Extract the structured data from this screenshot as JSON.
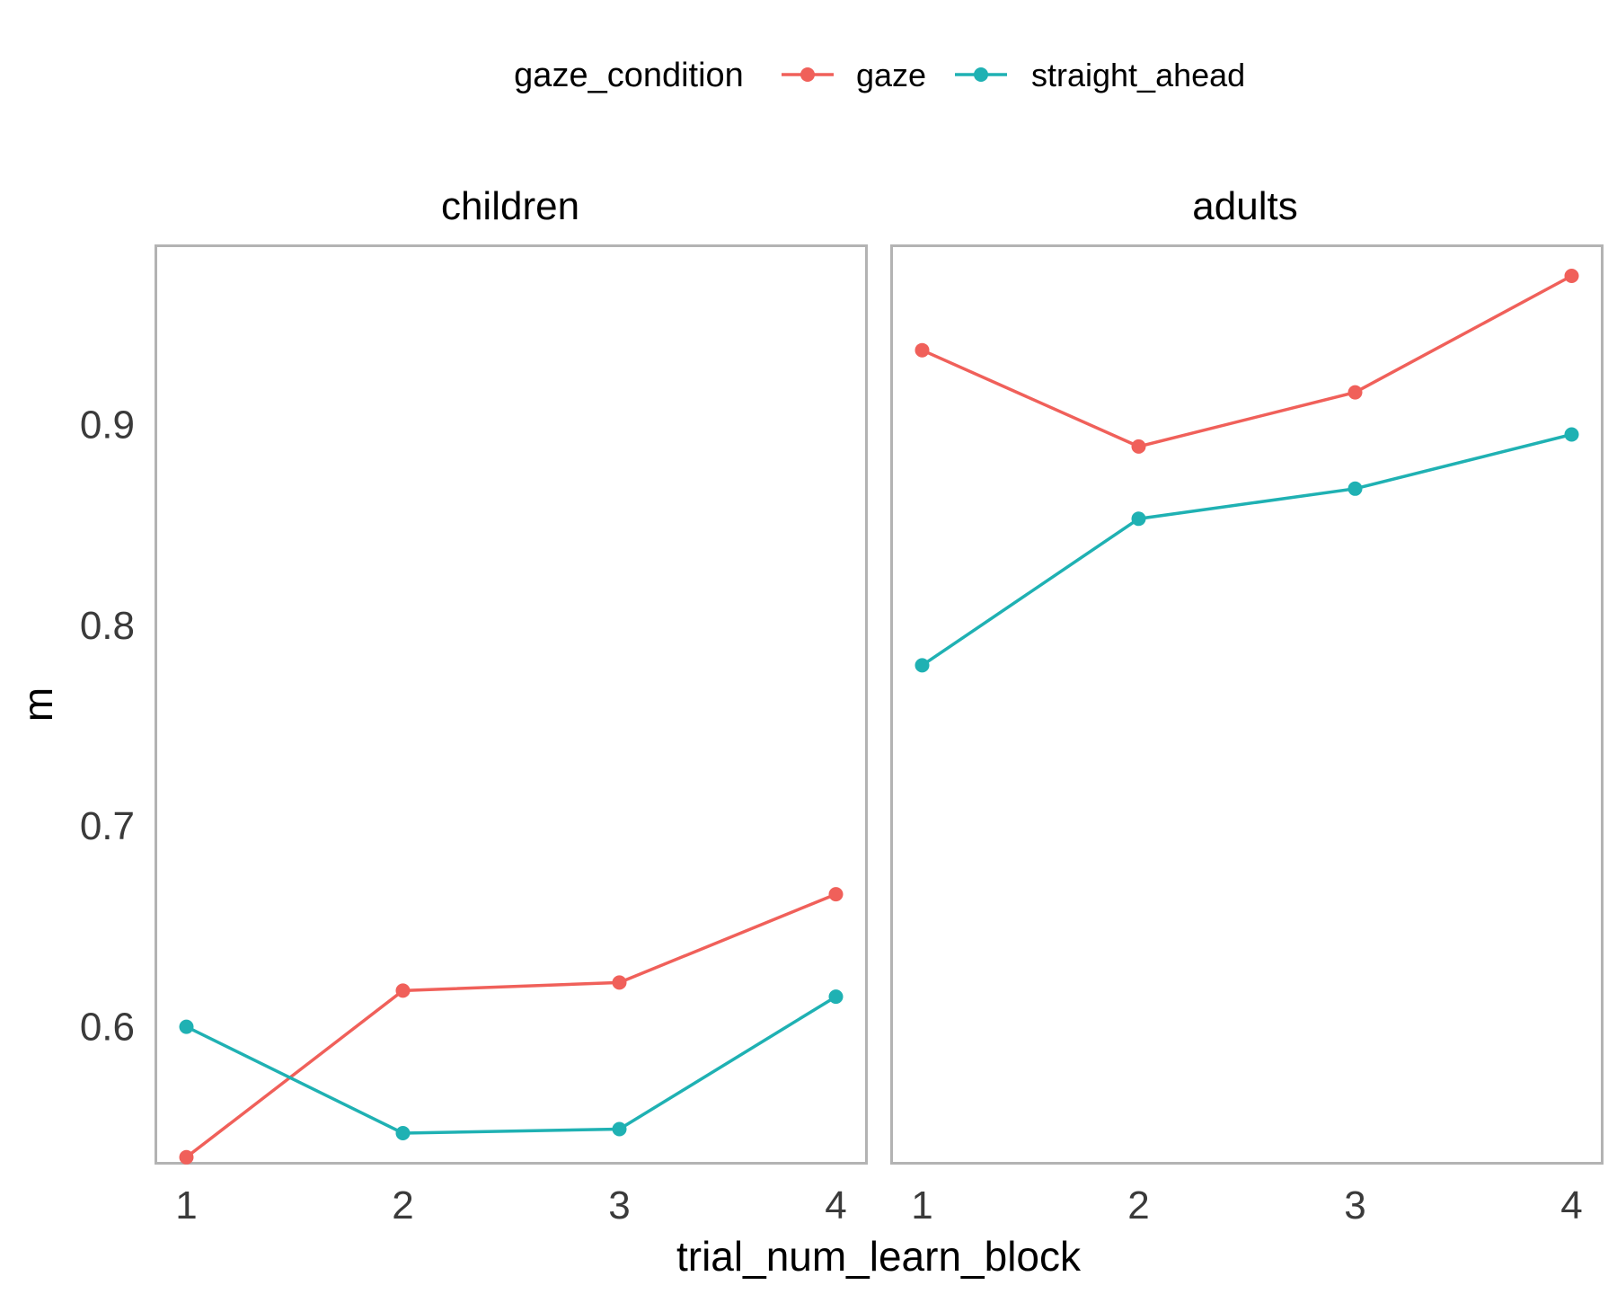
{
  "chart_data": {
    "type": "line",
    "xlabel": "trial_num_learn_block",
    "ylabel": "m",
    "x": [
      1,
      2,
      3,
      4
    ],
    "x_ticks": [
      "1",
      "2",
      "3",
      "4"
    ],
    "y_ticks": [
      "0.6",
      "0.7",
      "0.8",
      "0.9"
    ],
    "ylim": [
      0.532,
      0.989
    ],
    "grid": false,
    "legend": {
      "title": "gaze_condition",
      "placement": "top",
      "entries": [
        "gaze",
        "straight_ahead"
      ]
    },
    "colors": {
      "gaze": "#F0605A",
      "straight_ahead": "#1FB1B3"
    },
    "panels": [
      {
        "title": "children",
        "series": [
          {
            "name": "gaze",
            "values": [
              0.535,
              0.618,
              0.622,
              0.666
            ]
          },
          {
            "name": "straight_ahead",
            "values": [
              0.6,
              0.547,
              0.549,
              0.615
            ]
          }
        ]
      },
      {
        "title": "adults",
        "series": [
          {
            "name": "gaze",
            "values": [
              0.937,
              0.889,
              0.916,
              0.974
            ]
          },
          {
            "name": "straight_ahead",
            "values": [
              0.78,
              0.853,
              0.868,
              0.895
            ]
          }
        ]
      }
    ]
  }
}
